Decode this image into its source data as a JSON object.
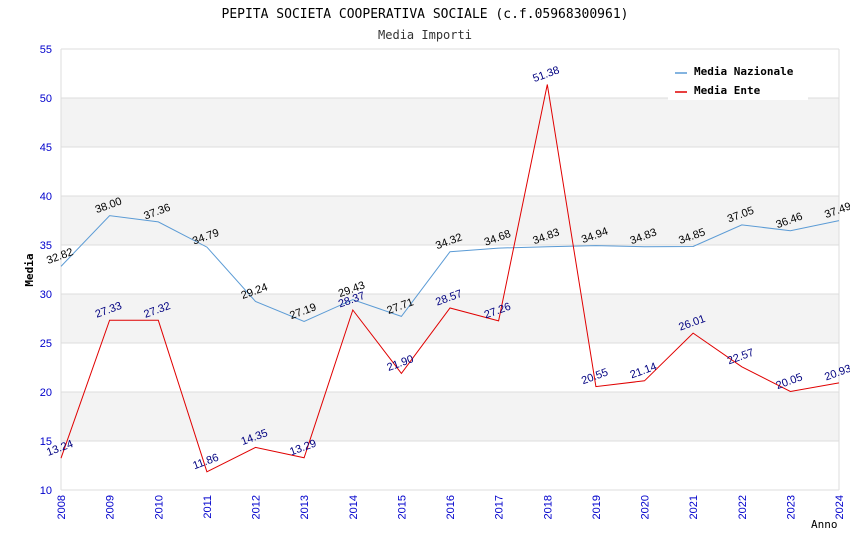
{
  "chart_data": {
    "type": "line",
    "title": "PEPITA SOCIETA COOPERATIVA SOCIALE (c.f.05968300961)",
    "subtitle": "Media Importi",
    "xlabel": "Anno",
    "ylabel": "Media",
    "ylim": [
      10,
      55
    ],
    "yticks": [
      10,
      15,
      20,
      25,
      30,
      35,
      40,
      45,
      50,
      55
    ],
    "grid": true,
    "legend_position": "top-right",
    "categories": [
      "2008",
      "2009",
      "2010",
      "2011",
      "2012",
      "2013",
      "2014",
      "2015",
      "2016",
      "2017",
      "2018",
      "2019",
      "2020",
      "2021",
      "2022",
      "2023",
      "2024"
    ],
    "series": [
      {
        "name": "Media Nazionale",
        "color": "#5b9bd5",
        "values": [
          32.82,
          38.0,
          37.36,
          34.79,
          29.24,
          27.19,
          29.43,
          27.71,
          34.32,
          34.68,
          34.83,
          34.94,
          34.83,
          34.85,
          37.05,
          36.46,
          37.49
        ],
        "labels": [
          "32.82",
          "38.00",
          "37.36",
          "34.79",
          "29.24",
          "27.19",
          "29.43",
          "27.71",
          "34.32",
          "34.68",
          "34.83",
          "34.94",
          "34.83",
          "34.85",
          "37.05",
          "36.46",
          "37.49"
        ]
      },
      {
        "name": "Media Ente",
        "color": "#e00000",
        "values": [
          13.24,
          27.33,
          27.32,
          11.86,
          14.35,
          13.29,
          28.37,
          21.9,
          28.57,
          27.26,
          51.38,
          20.55,
          21.14,
          26.01,
          22.57,
          20.05,
          20.93
        ],
        "labels": [
          "13.24",
          "27.33",
          "27.32",
          "11.86",
          "14.35",
          "13.29",
          "28.37",
          "21.90",
          "28.57",
          "27.26",
          "51.38",
          "20.55",
          "21.14",
          "26.01",
          "22.57",
          "20.05",
          "20.93"
        ]
      }
    ]
  }
}
